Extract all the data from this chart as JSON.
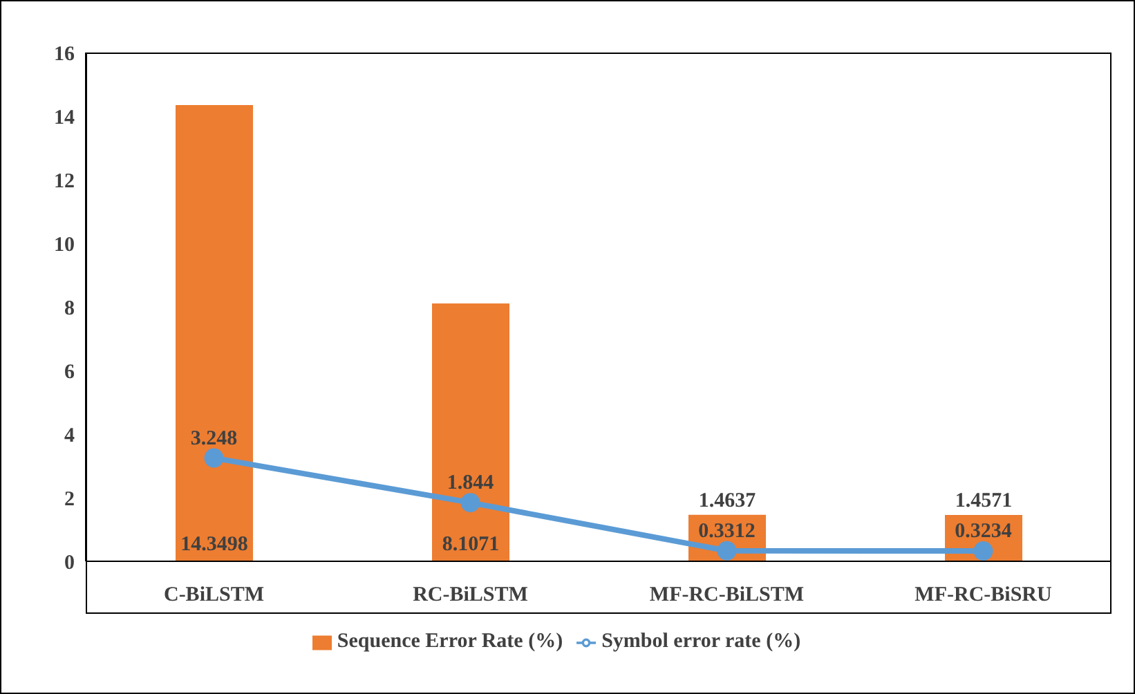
{
  "chart_data": {
    "type": "bar",
    "categories": [
      "C-BiLSTM",
      "RC-BiLSTM",
      "MF-RC-BiLSTM",
      "MF-RC-BiSRU"
    ],
    "series": [
      {
        "name": "Sequence Error Rate (%)",
        "color": "#ed7d31",
        "values": [
          14.3498,
          8.1071,
          1.4637,
          1.4571
        ]
      },
      {
        "name": "Symbol error rate (%)",
        "type": "line",
        "color": "#5b9bd5",
        "values": [
          3.248,
          1.844,
          0.3312,
          0.3234
        ]
      }
    ],
    "ylim": [
      0,
      16
    ],
    "yticks": [
      0,
      2,
      4,
      6,
      8,
      10,
      12,
      14,
      16
    ],
    "data_labels": true,
    "legend": "bottom",
    "marker": "circle",
    "grid": false
  }
}
